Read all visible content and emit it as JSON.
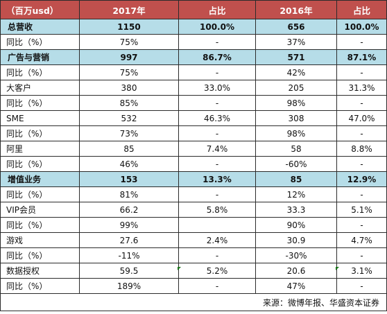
{
  "header": [
    "（百万usd）",
    "2017年",
    "占比",
    "2016年",
    "占比"
  ],
  "rows": [
    {
      "kind": "sec",
      "cells": [
        "总营收",
        "1150",
        "100.0%",
        "656",
        "100.0%"
      ]
    },
    {
      "kind": "row",
      "cells": [
        "同比（%）",
        "75%",
        "-",
        "37%",
        "-"
      ]
    },
    {
      "kind": "sec",
      "cells": [
        "广告与营销",
        "997",
        "86.7%",
        "571",
        "87.1%"
      ]
    },
    {
      "kind": "row",
      "cells": [
        "同比（%）",
        "75%",
        "-",
        "42%",
        "-"
      ]
    },
    {
      "kind": "row",
      "cells": [
        "大客户",
        "380",
        "33.0%",
        "205",
        "31.3%"
      ]
    },
    {
      "kind": "row",
      "cells": [
        "同比（%）",
        "85%",
        "-",
        "98%",
        "-"
      ]
    },
    {
      "kind": "row",
      "cells": [
        "SME",
        "532",
        "46.3%",
        "308",
        "47.0%"
      ]
    },
    {
      "kind": "row",
      "cells": [
        "同比（%）",
        "73%",
        "-",
        "98%",
        "-"
      ]
    },
    {
      "kind": "row",
      "cells": [
        "阿里",
        "85",
        "7.4%",
        "58",
        "8.8%"
      ]
    },
    {
      "kind": "row",
      "cells": [
        "同比（%）",
        "46%",
        "-",
        "-60%",
        "-"
      ]
    },
    {
      "kind": "sec",
      "cells": [
        "增值业务",
        "153",
        "13.3%",
        "85",
        "12.9%"
      ]
    },
    {
      "kind": "row",
      "cells": [
        "同比（%）",
        "81%",
        "-",
        "12%",
        "-"
      ]
    },
    {
      "kind": "row",
      "cells": [
        "VIP会员",
        "66.2",
        "5.8%",
        "33.3",
        "5.1%"
      ]
    },
    {
      "kind": "row",
      "cells": [
        "同比（%）",
        "99%",
        "",
        "90%",
        "-"
      ]
    },
    {
      "kind": "row",
      "cells": [
        "游戏",
        "27.6",
        "2.4%",
        "30.9",
        "4.7%"
      ]
    },
    {
      "kind": "row",
      "cells": [
        "同比（%）",
        "-11%",
        "-",
        "-30%",
        "-"
      ]
    },
    {
      "kind": "row",
      "cells": [
        "数据授权",
        "59.5",
        "5.2%",
        "20.6",
        "3.1%"
      ]
    },
    {
      "kind": "row",
      "cells": [
        "同比（%）",
        "189%",
        "-",
        "47%",
        "-"
      ]
    }
  ],
  "source": "来源：微博年报、华盛资本证券"
}
